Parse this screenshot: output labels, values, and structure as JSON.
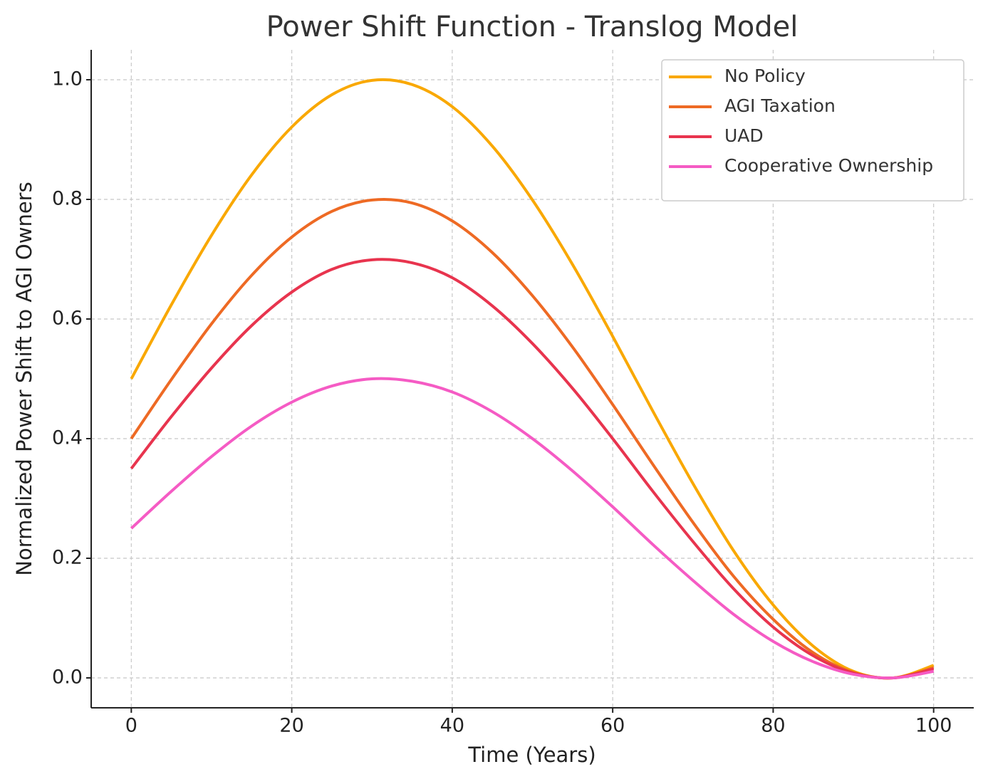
{
  "chart_data": {
    "type": "line",
    "title": "Power Shift Function - Translog Model",
    "x_label": "Time (Years)",
    "y_label": "Normalized Power Shift to AGI Owners",
    "x": [
      0,
      5,
      10,
      15,
      20,
      25,
      30,
      35,
      40,
      45,
      50,
      55,
      60,
      65,
      70,
      75,
      80,
      85,
      90,
      95,
      100
    ],
    "series": [
      {
        "name": "No Policy",
        "color": "#f9a800",
        "values": [
          0.5,
          0.624,
          0.74,
          0.841,
          0.921,
          0.975,
          0.999,
          0.992,
          0.955,
          0.889,
          0.799,
          0.691,
          0.571,
          0.446,
          0.325,
          0.214,
          0.122,
          0.053,
          0.011,
          0.0,
          0.021
        ]
      },
      {
        "name": "AGI Taxation",
        "color": "#ee6a24",
        "values": [
          0.4,
          0.499,
          0.592,
          0.673,
          0.737,
          0.78,
          0.799,
          0.794,
          0.764,
          0.711,
          0.639,
          0.553,
          0.457,
          0.357,
          0.26,
          0.171,
          0.098,
          0.042,
          0.009,
          0.0,
          0.017
        ]
      },
      {
        "name": "UAD",
        "color": "#e8344e",
        "values": [
          0.35,
          0.437,
          0.518,
          0.589,
          0.645,
          0.683,
          0.699,
          0.694,
          0.669,
          0.622,
          0.559,
          0.484,
          0.4,
          0.312,
          0.228,
          0.15,
          0.085,
          0.037,
          0.008,
          0.0,
          0.015
        ]
      },
      {
        "name": "Cooperative Ownership",
        "color": "#f55bc4",
        "values": [
          0.25,
          0.312,
          0.37,
          0.421,
          0.461,
          0.488,
          0.5,
          0.496,
          0.478,
          0.445,
          0.4,
          0.346,
          0.286,
          0.223,
          0.163,
          0.107,
          0.061,
          0.027,
          0.006,
          0.0,
          0.011
        ]
      }
    ],
    "xlim": [
      -5,
      105
    ],
    "xticks": [
      0,
      20,
      40,
      60,
      80,
      100
    ],
    "ylim": [
      -0.05,
      1.05
    ],
    "yticks": [
      {
        "value": 0,
        "label": "0.0"
      },
      {
        "value": 0.2,
        "label": "0.2"
      },
      {
        "value": 0.4,
        "label": "0.4"
      },
      {
        "value": 0.6,
        "label": "0.6"
      },
      {
        "value": 0.8,
        "label": "0.8"
      },
      {
        "value": 1,
        "label": "1.0"
      }
    ],
    "grid": true,
    "legend": "upper right"
  }
}
